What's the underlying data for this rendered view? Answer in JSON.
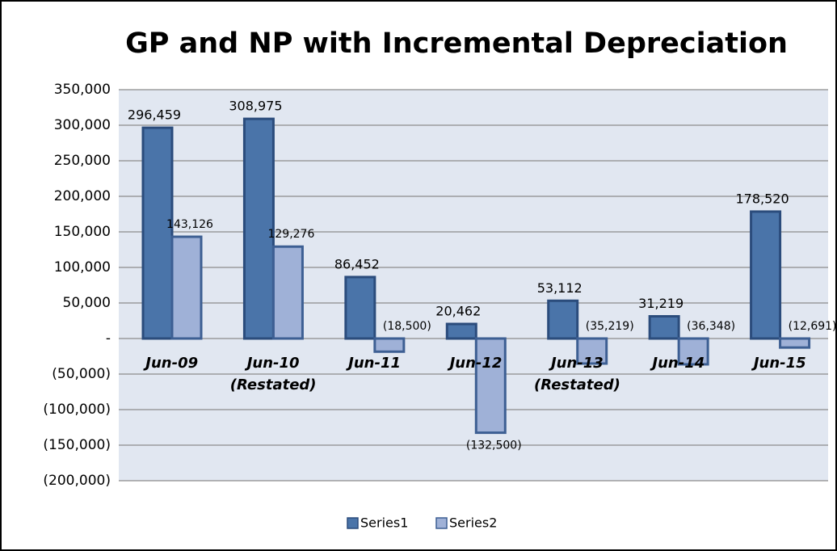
{
  "chart_data": {
    "type": "bar",
    "title": "GP and NP with Incremental Depreciation",
    "categories": [
      "Jun-09",
      "Jun-10\n(Restated)",
      "Jun-11",
      "Jun-12",
      "Jun-13\n(Restated)",
      "Jun-14",
      "Jun-15"
    ],
    "series": [
      {
        "name": "Series1",
        "color": "#4a74a9",
        "values": [
          296459,
          308975,
          86452,
          20462,
          53112,
          31219,
          178520
        ],
        "value_labels": [
          "296,459",
          "308,975",
          "86,452",
          "20,462",
          "53,112",
          "31,219",
          "178,520"
        ]
      },
      {
        "name": "Series2",
        "color": "#9fb1d7",
        "values": [
          143126,
          129276,
          -18500,
          -132500,
          -35219,
          -36348,
          -12691
        ],
        "value_labels": [
          "143,126",
          "129,276",
          "(18,500)",
          "(132,500)",
          "(35,219)",
          "(36,348)",
          "(12,691)"
        ]
      }
    ],
    "ylim": [
      -200000,
      350000
    ],
    "yticks": [
      {
        "value": -200000,
        "label": "(200,000)"
      },
      {
        "value": -150000,
        "label": "(150,000)"
      },
      {
        "value": -100000,
        "label": "(100,000)"
      },
      {
        "value": -50000,
        "label": "(50,000)"
      },
      {
        "value": 0,
        "label": "-"
      },
      {
        "value": 50000,
        "label": "50,000"
      },
      {
        "value": 100000,
        "label": "100,000"
      },
      {
        "value": 150000,
        "label": "150,000"
      },
      {
        "value": 200000,
        "label": "200,000"
      },
      {
        "value": 250000,
        "label": "250,000"
      },
      {
        "value": 300000,
        "label": "300,000"
      },
      {
        "value": 350000,
        "label": "350,000"
      }
    ],
    "grid": true,
    "legend": "bottom"
  }
}
